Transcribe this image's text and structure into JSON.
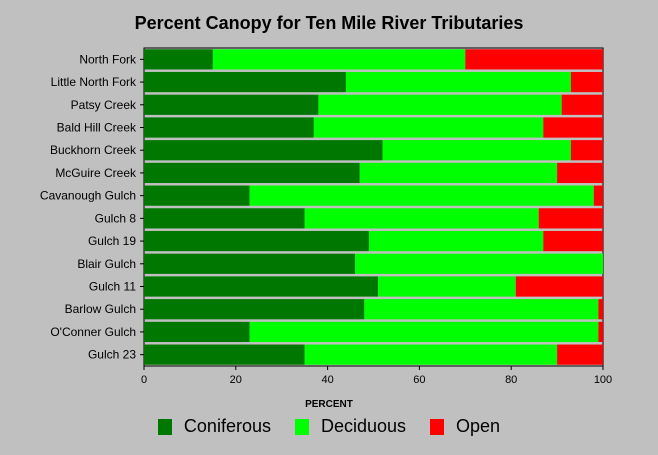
{
  "chart_data": {
    "type": "bar",
    "orientation": "horizontal",
    "stacked": true,
    "title": "Percent Canopy for Ten Mile River Tributaries",
    "xlabel": "PERCENT",
    "ylabel": "",
    "xlim": [
      0,
      100
    ],
    "xticks": [
      0,
      20,
      40,
      60,
      80,
      100
    ],
    "grid": false,
    "legend_position": "bottom",
    "categories": [
      "North Fork",
      "Little North Fork",
      "Patsy Creek",
      "Bald Hill Creek",
      "Buckhorn Creek",
      "McGuire Creek",
      "Cavanough Gulch",
      "Gulch 8",
      "Gulch 19",
      "Blair Gulch",
      "Gulch 11",
      "Barlow Gulch",
      "O'Conner Gulch",
      "Gulch 23"
    ],
    "series": [
      {
        "name": "Coniferous",
        "color": "#007800",
        "values": [
          15,
          44,
          38,
          37,
          52,
          47,
          23,
          35,
          49,
          46,
          51,
          48,
          23,
          35
        ]
      },
      {
        "name": "Deciduous",
        "color": "#00ff00",
        "values": [
          55,
          49,
          53,
          50,
          41,
          43,
          75,
          51,
          38,
          54,
          30,
          51,
          76,
          55
        ]
      },
      {
        "name": "Open",
        "color": "#ff0000",
        "values": [
          30,
          7,
          9,
          13,
          7,
          10,
          2,
          14,
          13,
          0,
          19,
          1,
          1,
          10
        ]
      }
    ]
  }
}
